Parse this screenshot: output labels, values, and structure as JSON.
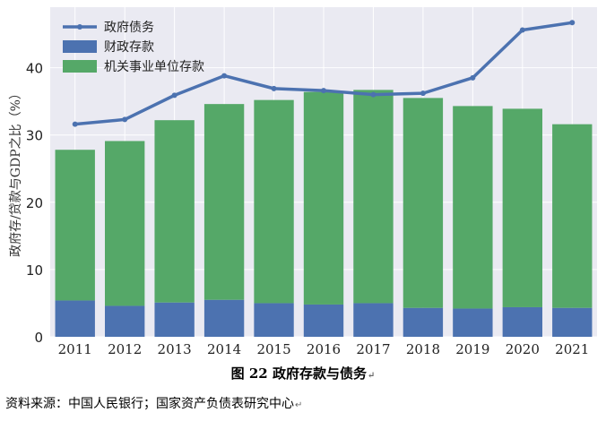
{
  "chart_data": {
    "type": "bar",
    "stacked": true,
    "categories": [
      "2011",
      "2012",
      "2013",
      "2014",
      "2015",
      "2016",
      "2017",
      "2018",
      "2019",
      "2020",
      "2021"
    ],
    "series": [
      {
        "name": "财政存款",
        "type": "bar",
        "color": "#4c72b0",
        "values": [
          5.4,
          4.6,
          5.1,
          5.5,
          5.0,
          4.8,
          5.0,
          4.3,
          4.2,
          4.4,
          4.3
        ]
      },
      {
        "name": "机关事业单位存款",
        "type": "bar",
        "color": "#55a868",
        "values": [
          22.4,
          24.5,
          27.1,
          29.1,
          30.2,
          31.6,
          31.7,
          31.2,
          30.1,
          29.5,
          27.3
        ]
      },
      {
        "name": "政府债务",
        "type": "line",
        "color": "#4c72b0",
        "values": [
          31.6,
          32.3,
          35.9,
          38.8,
          36.9,
          36.6,
          36.0,
          36.2,
          38.5,
          45.6,
          46.7
        ]
      }
    ],
    "ylabel": "政府存/贷款与GDP之比（%）",
    "ylim": [
      0,
      49
    ],
    "yticks": [
      0,
      10,
      20,
      30,
      40
    ],
    "grid": true,
    "legend": "top-left",
    "background": "#eaeaf2"
  },
  "caption": "图 22 政府存款与债务",
  "source": "资料来源：中国人民银行；国家资产负债表研究中心",
  "para_mark": "↵"
}
